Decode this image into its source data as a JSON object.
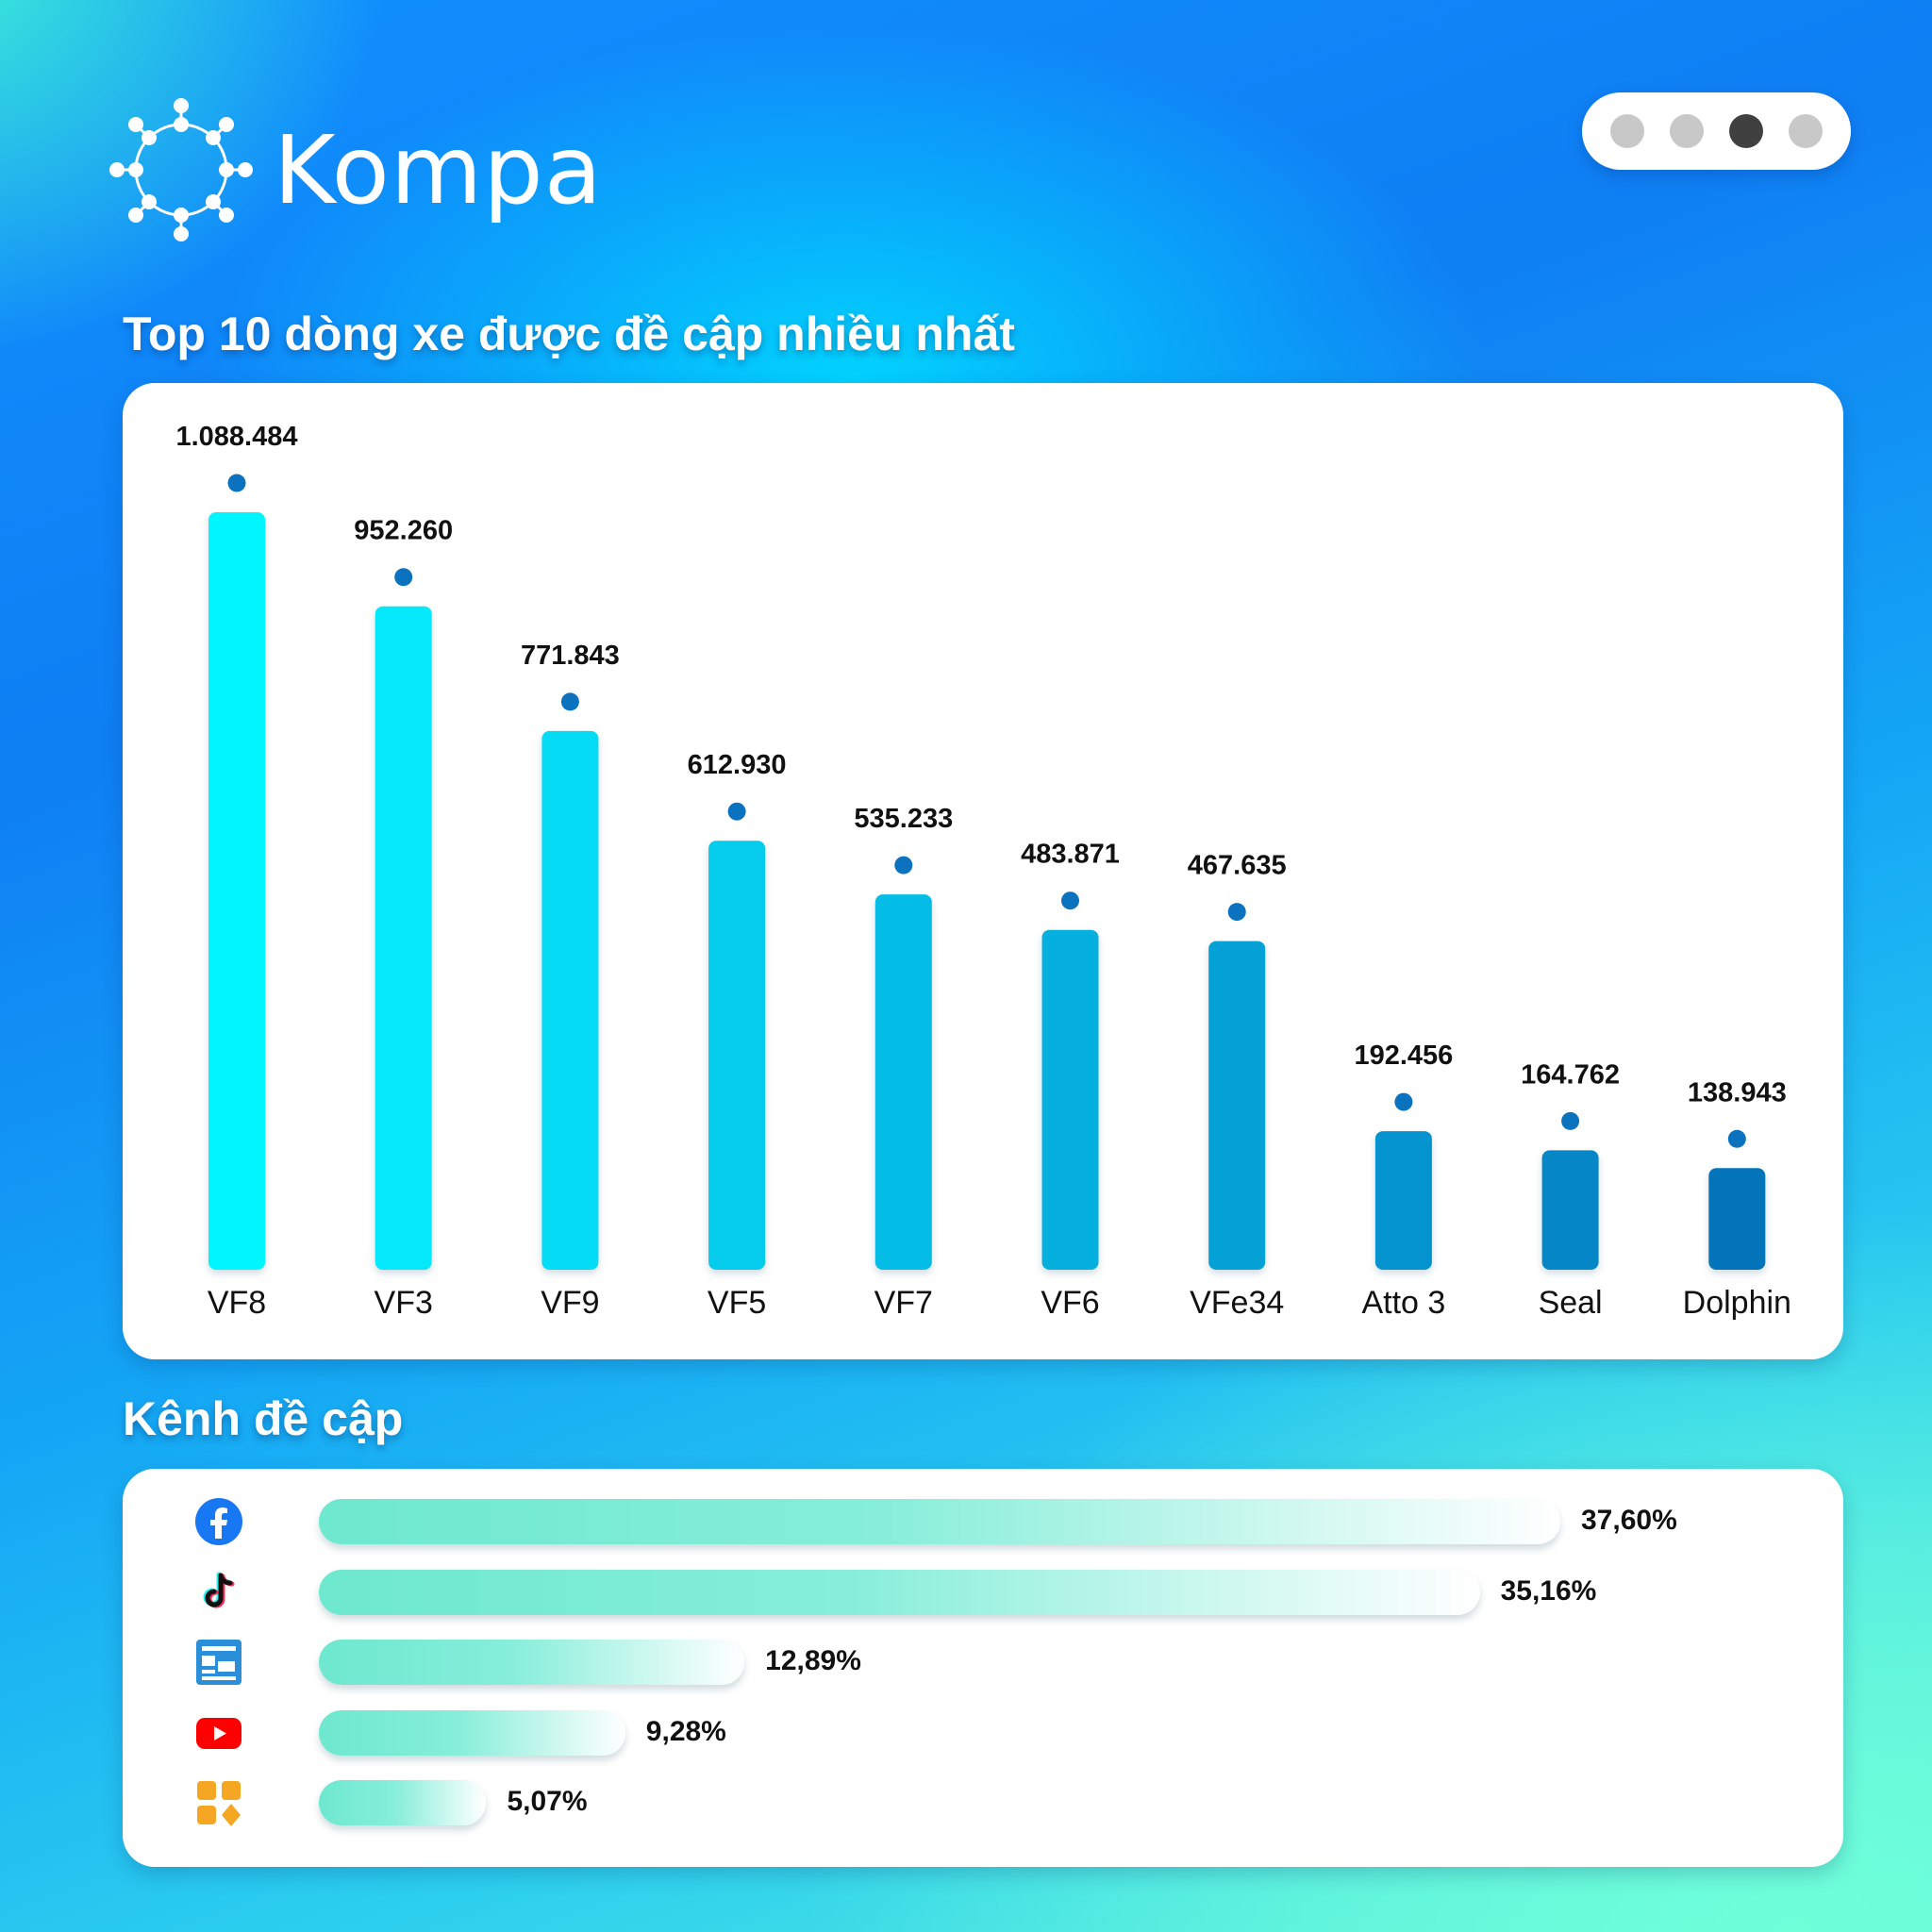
{
  "brand": {
    "name": "Kompa",
    "logo_icon": "kompa-network-icon"
  },
  "pager": {
    "count": 4,
    "active_index": 2
  },
  "sections": {
    "top_models_title": "Top 10 dòng xe được đề cập nhiều nhất",
    "channels_title": "Kênh đề cập"
  },
  "chart_data": [
    {
      "type": "bar",
      "categories": [
        "VF8",
        "VF3",
        "VF9",
        "VF5",
        "VF7",
        "VF6",
        "VFe34",
        "Atto 3",
        "Seal",
        "Dolphin"
      ],
      "values": [
        1088484,
        952260,
        771843,
        612930,
        535233,
        483871,
        467635,
        192456,
        164762,
        138943
      ],
      "value_labels": [
        "1.088.484",
        "952.260",
        "771.843",
        "612.930",
        "535.233",
        "483.871",
        "467.635",
        "192.456",
        "164.762",
        "138.943"
      ],
      "colors": [
        "#00f6ff",
        "#03e9fb",
        "#04dcf6",
        "#05cbed",
        "#04bde6",
        "#05b0df",
        "#04a1d7",
        "#0493cf",
        "#0486c7",
        "#0474ba"
      ],
      "marker_color": "#0b72c0",
      "grid": false
    },
    {
      "type": "bar",
      "orientation": "horizontal",
      "categories": [
        "Facebook",
        "TikTok",
        "News",
        "YouTube",
        "Other"
      ],
      "icons": [
        "facebook-icon",
        "tiktok-icon",
        "news-icon",
        "youtube-icon",
        "other-apps-icon"
      ],
      "values": [
        37.6,
        35.16,
        12.89,
        9.28,
        5.07
      ],
      "value_labels": [
        "37,60%",
        "35,16%",
        "12,89%",
        "9,28%",
        "5,07%"
      ],
      "bar_color": "#6ee8cf"
    }
  ]
}
